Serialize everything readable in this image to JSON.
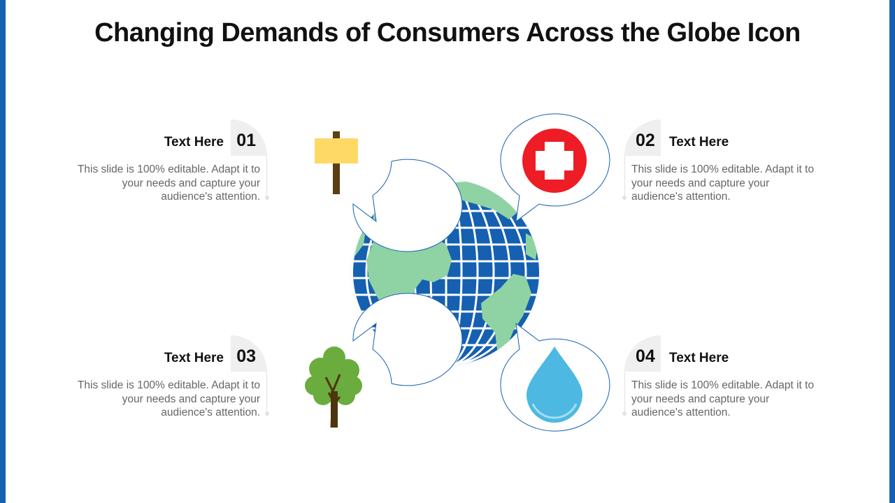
{
  "title": "Changing Demands of Consumers Across the Globe Icon",
  "items": [
    {
      "number": "01",
      "heading": "Text Here",
      "description": "This slide is 100% editable. Adapt it to your needs and capture your audience's attention.",
      "icon": "signboard-icon"
    },
    {
      "number": "02",
      "heading": "Text Here",
      "description": "This slide is 100% editable. Adapt it to your needs and capture your audience's attention.",
      "icon": "medical-cross-icon"
    },
    {
      "number": "03",
      "heading": "Text Here",
      "description": "This slide is 100% editable. Adapt it to your needs and capture your audience's attention.",
      "icon": "tree-icon"
    },
    {
      "number": "04",
      "heading": "Text Here",
      "description": "This slide is 100% editable. Adapt it to your needs and capture your audience's attention.",
      "icon": "water-drop-icon"
    }
  ],
  "center_icon": "globe-icon",
  "colors": {
    "accent_border": "#1560b0",
    "globe_ocean": "#1560b0",
    "globe_land": "#8fd3a4",
    "cross_red": "#ee1c25",
    "sign_yellow": "#ffd966",
    "tree_green": "#6aad3e",
    "drop_blue": "#4db8e2"
  }
}
